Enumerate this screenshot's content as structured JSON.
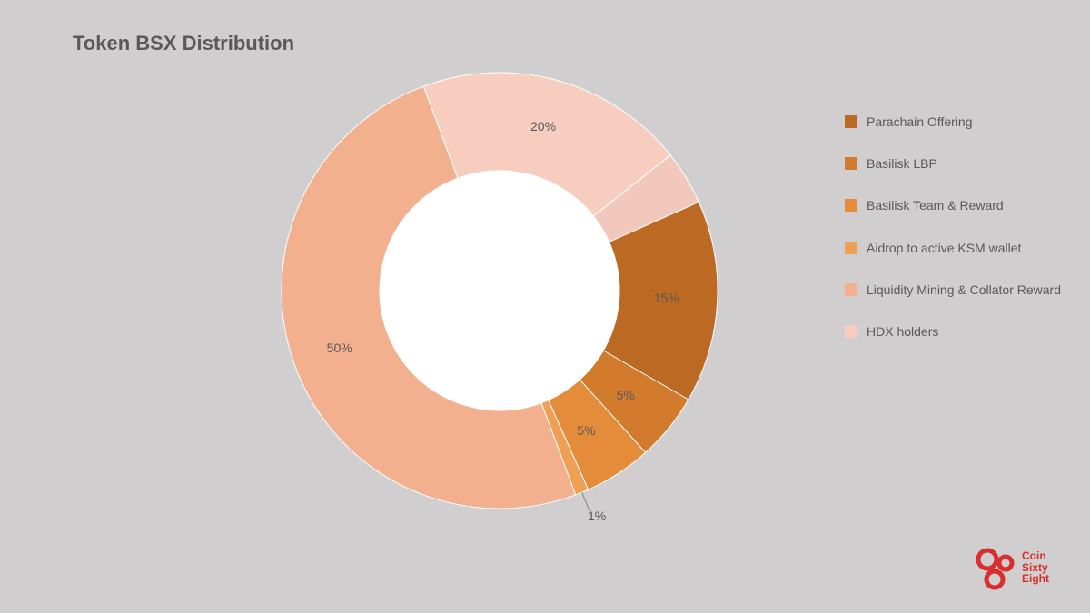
{
  "title": "Token BSX Distribution",
  "chart": {
    "type": "donut",
    "background_color": "#d0cecf",
    "inner_hole_color": "#ffffff",
    "inner_radius_ratio": 0.55,
    "start_angle_deg": -24,
    "slices": [
      {
        "name": "Parachain Offering",
        "value": 15,
        "label": "15%",
        "color": "#bc6a23"
      },
      {
        "name": "Basilisk LBP",
        "value": 5,
        "label": "5%",
        "color": "#d27b2c"
      },
      {
        "name": "Basilisk Team & Reward",
        "value": 5,
        "label": "5%",
        "color": "#e58c3a"
      },
      {
        "name": "Aidrop to active KSM wallet",
        "value": 1,
        "label": "1%",
        "color": "#f0a054",
        "external_label": true
      },
      {
        "name": "Liquidity Mining & Collator Reward",
        "value": 50,
        "label": "50%",
        "color": "#f2b08f"
      },
      {
        "name": "HDX holders",
        "value": 20,
        "label": "20%",
        "color": "#f7cdbf"
      },
      {
        "name": "filler",
        "value": 4,
        "label": "",
        "color": "#f2c8bc",
        "hide_legend": true
      }
    ],
    "label_fontsize": 14,
    "label_color": "#595959",
    "stroke_color": "#ffffff",
    "stroke_width": 1
  },
  "legend": {
    "swatch_size": 14,
    "fontsize": 14,
    "text_color": "#595959"
  },
  "brand": {
    "line1": "Coin",
    "line2": "Sixty",
    "line3": "Eight",
    "color": "#d92e2e"
  }
}
